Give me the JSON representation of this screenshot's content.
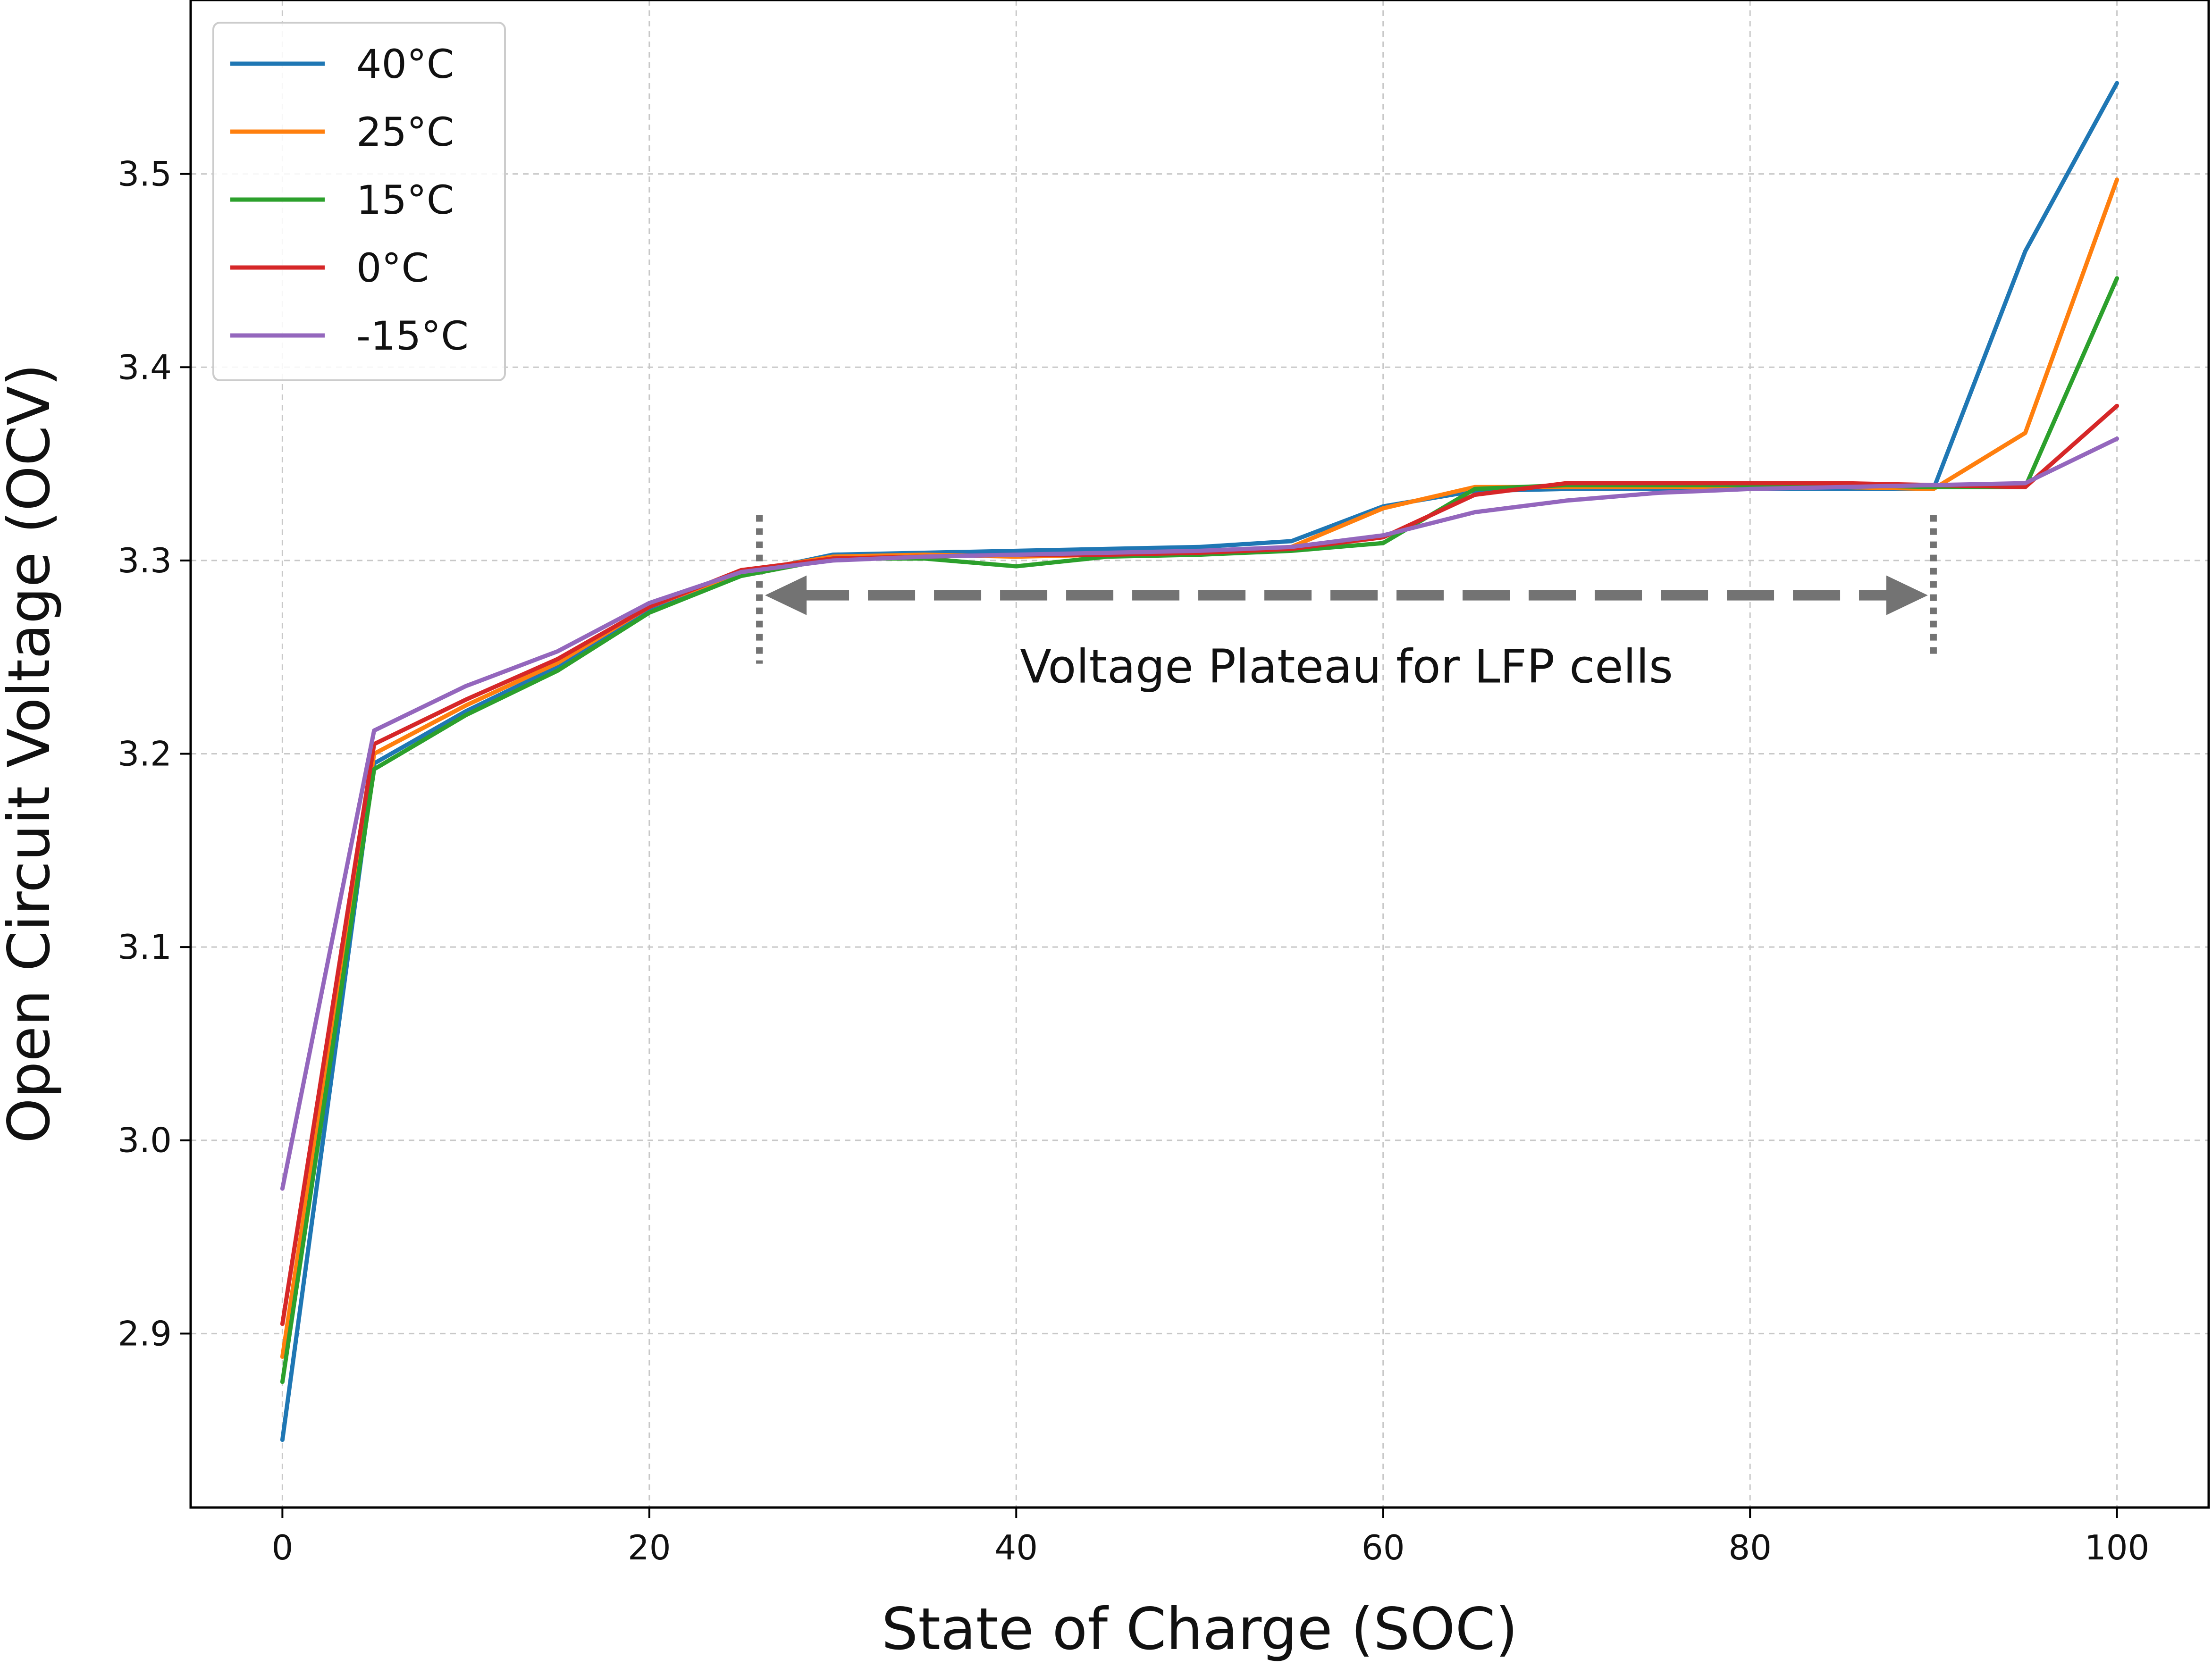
{
  "chart_data": {
    "type": "line",
    "title": "",
    "xlabel": "State of Charge (SOC)",
    "ylabel": "Open Circuit Voltage (OCV)",
    "xlim": [
      -5,
      105
    ],
    "ylim": [
      2.81,
      3.59
    ],
    "xticks": [
      0,
      20,
      40,
      60,
      80,
      100
    ],
    "yticks": [
      2.9,
      3.0,
      3.1,
      3.2,
      3.3,
      3.4,
      3.5
    ],
    "xtick_labels": [
      "0",
      "20",
      "40",
      "60",
      "80",
      "100"
    ],
    "ytick_labels": [
      "2.9",
      "3.0",
      "3.1",
      "3.2",
      "3.3",
      "3.4",
      "3.5"
    ],
    "grid": true,
    "legend_position": "top-left",
    "x": [
      0,
      5,
      10,
      15,
      20,
      25,
      30,
      35,
      40,
      45,
      50,
      55,
      60,
      65,
      70,
      75,
      80,
      85,
      90,
      95,
      100
    ],
    "series": [
      {
        "name": "40°C",
        "color": "#1f77b4",
        "values": [
          2.845,
          3.195,
          3.222,
          3.245,
          3.275,
          3.293,
          3.303,
          3.304,
          3.305,
          3.306,
          3.307,
          3.31,
          3.328,
          3.336,
          3.337,
          3.337,
          3.337,
          3.337,
          3.337,
          3.46,
          3.547
        ]
      },
      {
        "name": "25°C",
        "color": "#ff7f0e",
        "values": [
          2.888,
          3.2,
          3.225,
          3.247,
          3.276,
          3.294,
          3.302,
          3.303,
          3.302,
          3.303,
          3.304,
          3.307,
          3.327,
          3.338,
          3.338,
          3.338,
          3.338,
          3.338,
          3.337,
          3.366,
          3.497
        ]
      },
      {
        "name": "15°C",
        "color": "#2ca02c",
        "values": [
          2.875,
          3.192,
          3.22,
          3.243,
          3.273,
          3.292,
          3.301,
          3.301,
          3.297,
          3.302,
          3.303,
          3.305,
          3.309,
          3.337,
          3.339,
          3.339,
          3.339,
          3.339,
          3.338,
          3.338,
          3.446
        ]
      },
      {
        "name": "0°C",
        "color": "#d62728",
        "values": [
          2.905,
          3.205,
          3.228,
          3.249,
          3.276,
          3.295,
          3.301,
          3.302,
          3.303,
          3.303,
          3.304,
          3.306,
          3.312,
          3.334,
          3.34,
          3.34,
          3.34,
          3.34,
          3.339,
          3.338,
          3.38
        ]
      },
      {
        "name": "-15°C",
        "color": "#9467bd",
        "values": [
          2.975,
          3.212,
          3.235,
          3.253,
          3.278,
          3.294,
          3.3,
          3.302,
          3.303,
          3.304,
          3.305,
          3.307,
          3.313,
          3.325,
          3.331,
          3.335,
          3.337,
          3.338,
          3.339,
          3.34,
          3.363
        ]
      }
    ],
    "annotations": [
      {
        "text": "Voltage Plateau for LFP cells",
        "x_start": 26,
        "x_end": 90,
        "y": 3.282,
        "color": "#737373"
      }
    ]
  }
}
